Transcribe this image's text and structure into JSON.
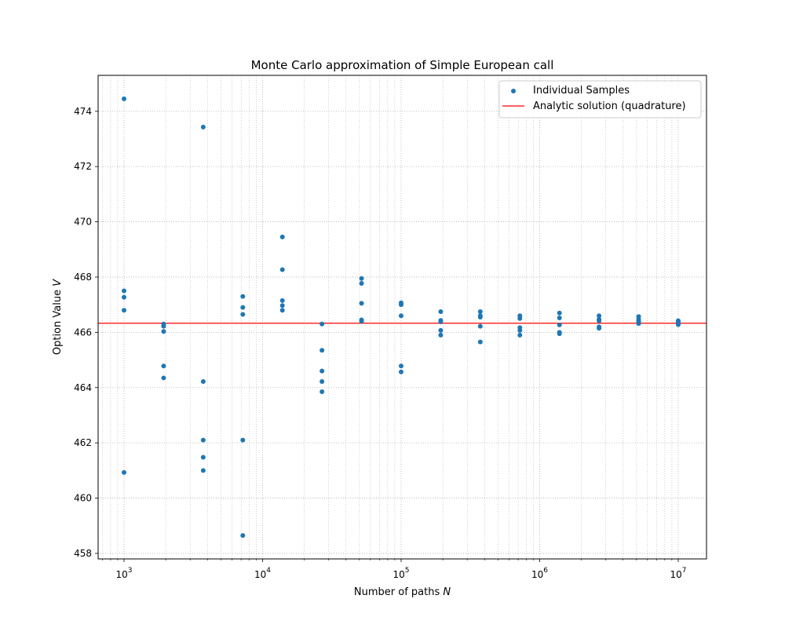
{
  "chart_data": {
    "type": "scatter",
    "title": "Monte Carlo approximation of Simple European call",
    "xlabel_text": "Number of paths ",
    "xlabel_var": "N",
    "ylabel_text": "Option Value ",
    "ylabel_var": "V",
    "x_scale": "log",
    "xlim": [
      650,
      16000000
    ],
    "ylim": [
      457.8,
      475.3
    ],
    "grid": true,
    "legend_position": "top-right",
    "x_ticks": [
      {
        "value": 1000,
        "base": "10",
        "exp": "3"
      },
      {
        "value": 10000,
        "base": "10",
        "exp": "4"
      },
      {
        "value": 100000,
        "base": "10",
        "exp": "5"
      },
      {
        "value": 1000000,
        "base": "10",
        "exp": "6"
      },
      {
        "value": 10000000,
        "base": "10",
        "exp": "7"
      }
    ],
    "y_ticks": [
      458,
      460,
      462,
      464,
      466,
      468,
      470,
      472,
      474
    ],
    "colors": {
      "samples": "#1f77b4",
      "analytic": "#ff0000",
      "grid": "#b0b0b0"
    },
    "series": [
      {
        "name": "Individual Samples",
        "type": "scatter",
        "points": [
          {
            "x": 1000,
            "y": 474.45
          },
          {
            "x": 1000,
            "y": 467.5
          },
          {
            "x": 1000,
            "y": 467.27
          },
          {
            "x": 1000,
            "y": 466.8
          },
          {
            "x": 1000,
            "y": 460.93
          },
          {
            "x": 1931,
            "y": 466.3
          },
          {
            "x": 1931,
            "y": 466.22
          },
          {
            "x": 1931,
            "y": 466.03
          },
          {
            "x": 1931,
            "y": 464.78
          },
          {
            "x": 1931,
            "y": 464.35
          },
          {
            "x": 3728,
            "y": 473.43
          },
          {
            "x": 3728,
            "y": 464.22
          },
          {
            "x": 3728,
            "y": 462.1
          },
          {
            "x": 3728,
            "y": 461.48
          },
          {
            "x": 3728,
            "y": 461.0
          },
          {
            "x": 7197,
            "y": 467.3
          },
          {
            "x": 7197,
            "y": 466.9
          },
          {
            "x": 7197,
            "y": 466.65
          },
          {
            "x": 7197,
            "y": 462.1
          },
          {
            "x": 7197,
            "y": 458.65
          },
          {
            "x": 13895,
            "y": 469.45
          },
          {
            "x": 13895,
            "y": 468.27
          },
          {
            "x": 13895,
            "y": 467.15
          },
          {
            "x": 13895,
            "y": 466.97
          },
          {
            "x": 13895,
            "y": 466.8
          },
          {
            "x": 26827,
            "y": 466.3
          },
          {
            "x": 26827,
            "y": 465.35
          },
          {
            "x": 26827,
            "y": 464.6
          },
          {
            "x": 26827,
            "y": 464.22
          },
          {
            "x": 26827,
            "y": 463.85
          },
          {
            "x": 51795,
            "y": 467.95
          },
          {
            "x": 51795,
            "y": 467.77
          },
          {
            "x": 51795,
            "y": 467.05
          },
          {
            "x": 51795,
            "y": 466.45
          },
          {
            "x": 51795,
            "y": 466.4
          },
          {
            "x": 100000,
            "y": 467.07
          },
          {
            "x": 100000,
            "y": 467.0
          },
          {
            "x": 100000,
            "y": 466.6
          },
          {
            "x": 100000,
            "y": 464.78
          },
          {
            "x": 100000,
            "y": 464.57
          },
          {
            "x": 193070,
            "y": 466.75
          },
          {
            "x": 193070,
            "y": 466.43
          },
          {
            "x": 193070,
            "y": 466.38
          },
          {
            "x": 193070,
            "y": 466.07
          },
          {
            "x": 193070,
            "y": 465.9
          },
          {
            "x": 372759,
            "y": 466.75
          },
          {
            "x": 372759,
            "y": 466.6
          },
          {
            "x": 372759,
            "y": 466.55
          },
          {
            "x": 372759,
            "y": 466.22
          },
          {
            "x": 372759,
            "y": 465.65
          },
          {
            "x": 719686,
            "y": 466.6
          },
          {
            "x": 719686,
            "y": 466.5
          },
          {
            "x": 719686,
            "y": 466.17
          },
          {
            "x": 719686,
            "y": 466.07
          },
          {
            "x": 719686,
            "y": 465.9
          },
          {
            "x": 1389495,
            "y": 466.7
          },
          {
            "x": 1389495,
            "y": 466.52
          },
          {
            "x": 1389495,
            "y": 466.27
          },
          {
            "x": 1389495,
            "y": 466.0
          },
          {
            "x": 1389495,
            "y": 465.95
          },
          {
            "x": 2682696,
            "y": 466.6
          },
          {
            "x": 2682696,
            "y": 466.47
          },
          {
            "x": 2682696,
            "y": 466.42
          },
          {
            "x": 2682696,
            "y": 466.2
          },
          {
            "x": 2682696,
            "y": 466.15
          },
          {
            "x": 5179475,
            "y": 466.57
          },
          {
            "x": 5179475,
            "y": 466.47
          },
          {
            "x": 5179475,
            "y": 466.4
          },
          {
            "x": 5179475,
            "y": 466.35
          },
          {
            "x": 5179475,
            "y": 466.32
          },
          {
            "x": 10000000,
            "y": 466.42
          },
          {
            "x": 10000000,
            "y": 466.38
          },
          {
            "x": 10000000,
            "y": 466.33
          },
          {
            "x": 10000000,
            "y": 466.3
          },
          {
            "x": 10000000,
            "y": 466.28
          }
        ]
      },
      {
        "name": "Analytic solution (quadrature)",
        "type": "hline",
        "y": 466.33
      }
    ]
  }
}
